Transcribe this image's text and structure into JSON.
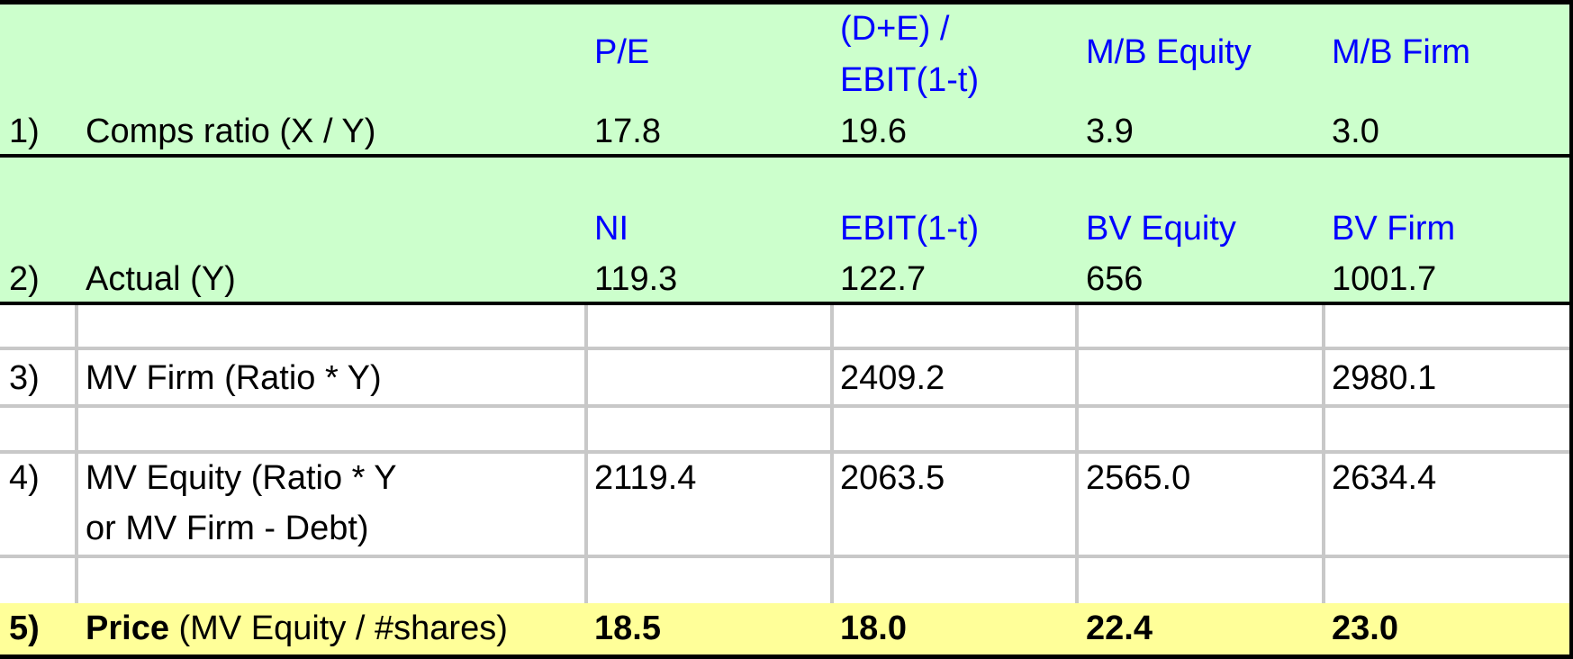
{
  "row1": {
    "num": "1)",
    "label": "Comps ratio (X / Y)",
    "headers": [
      "P/E",
      "(D+E) /",
      "EBIT(1-t)",
      "M/B Equity",
      "M/B Firm"
    ],
    "values": [
      "17.8",
      "19.6",
      "3.9",
      "3.0"
    ]
  },
  "row2": {
    "num": "2)",
    "label": "Actual (Y)",
    "headers": [
      "NI",
      "EBIT(1-t)",
      "BV Equity",
      "BV Firm"
    ],
    "values": [
      "119.3",
      "122.7",
      "656",
      "1001.7"
    ]
  },
  "row3": {
    "num": "3)",
    "label": "MV Firm (Ratio * Y)",
    "values": [
      "",
      "2409.2",
      "",
      "2980.1"
    ]
  },
  "row4": {
    "num": "4)",
    "label_line1": "MV Equity (Ratio * Y",
    "label_line2": "or MV Firm - Debt)",
    "values": [
      "2119.4",
      "2063.5",
      "2565.0",
      "2634.4"
    ]
  },
  "row5": {
    "num": "5)",
    "label_bold": "Price",
    "label_rest": " (MV Equity / #shares)",
    "values": [
      "18.5",
      "18.0",
      "22.4",
      "23.0"
    ]
  },
  "colors": {
    "green_band": "#ccffcc",
    "yellow_band": "#ffff99",
    "header_blue": "#0000ff",
    "gridline": "#c8c8c8"
  }
}
